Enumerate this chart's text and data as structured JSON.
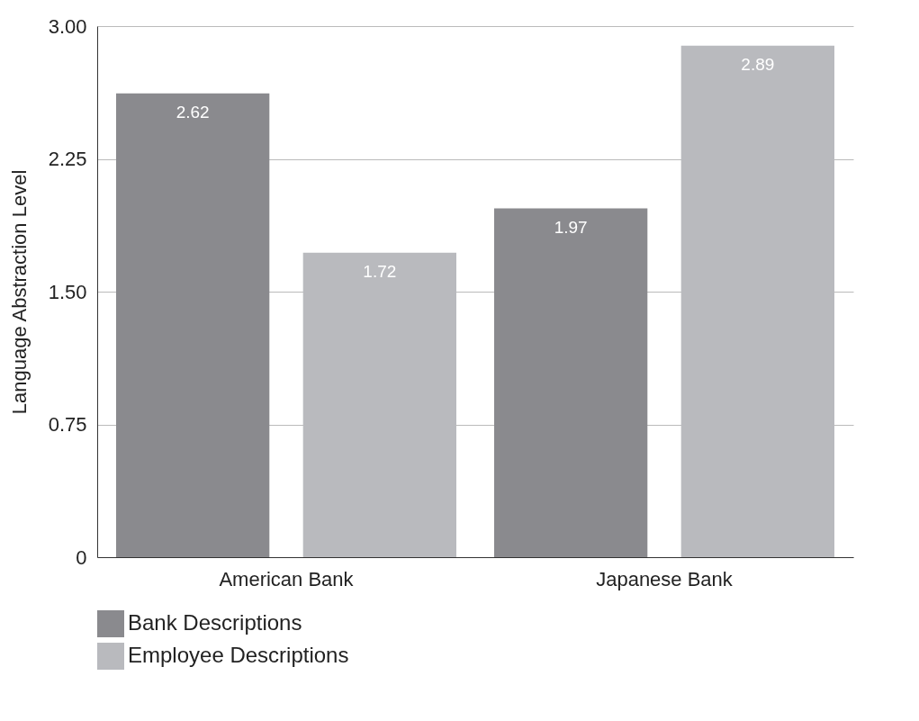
{
  "chart_data": {
    "type": "bar",
    "ylabel": "Language Abstraction Level",
    "categories": [
      "American Bank",
      "Japanese Bank"
    ],
    "series": [
      {
        "name": "Bank Descriptions",
        "color": "#8a8a8e",
        "values": [
          2.62,
          1.97
        ]
      },
      {
        "name": "Employee Descriptions",
        "color": "#b9babe",
        "values": [
          1.72,
          2.89
        ]
      }
    ],
    "ylim": [
      0,
      3
    ],
    "yticks": [
      0,
      {
        "value": 0.75,
        "label": "0.75"
      },
      {
        "value": 1.5,
        "label": "1.50"
      },
      {
        "value": 2.25,
        "label": "2.25"
      },
      {
        "value": 3,
        "label": "3.00"
      }
    ],
    "grid": "y",
    "legend": "bottom",
    "data_labels": true
  }
}
